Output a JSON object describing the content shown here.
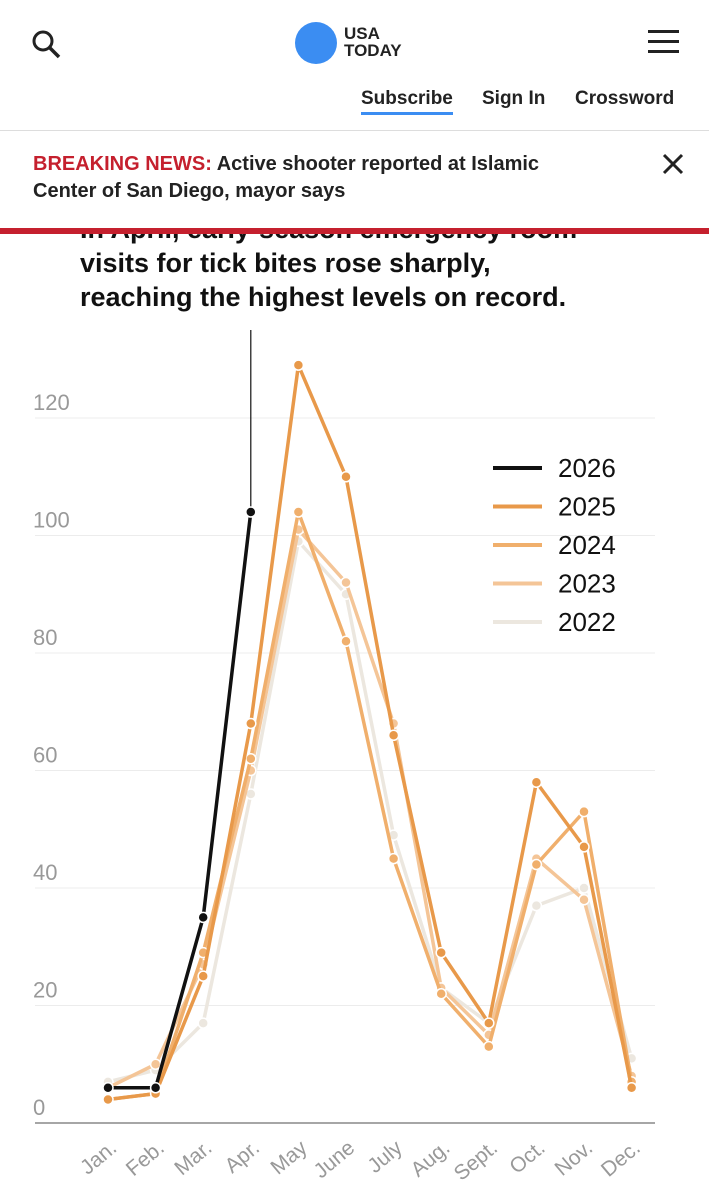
{
  "header": {
    "logo": [
      "USA",
      "TODAY"
    ],
    "nav": [
      "Subscribe",
      "Sign In",
      "Crossword"
    ]
  },
  "breaking": {
    "label": "BREAKING NEWS:",
    "headline": [
      "Active shooter reported at Islamic",
      "Center of San Diego, mayor says"
    ]
  },
  "chart_data": {
    "type": "line",
    "title": [
      "In April, early-season emergency room",
      "visits for tick bites rose sharply,",
      "reaching the highest levels on record."
    ],
    "categories": [
      "Jan.",
      "Feb.",
      "Mar.",
      "Apr.",
      "May",
      "June",
      "July",
      "Aug.",
      "Sept.",
      "Oct.",
      "Nov.",
      "Dec."
    ],
    "series": [
      {
        "name": "2026",
        "color": "#111111",
        "values": [
          6,
          6,
          35,
          104,
          null,
          null,
          null,
          null,
          null,
          null,
          null,
          null
        ]
      },
      {
        "name": "2025",
        "color": "#e8994a",
        "values": [
          4,
          5,
          25,
          68,
          129,
          110,
          66,
          29,
          17,
          58,
          47,
          6
        ]
      },
      {
        "name": "2024",
        "color": "#f0af6c",
        "values": [
          4,
          5,
          29,
          62,
          104,
          82,
          45,
          22,
          13,
          44,
          53,
          7
        ]
      },
      {
        "name": "2023",
        "color": "#f4c597",
        "values": [
          6,
          10,
          27,
          60,
          101,
          92,
          68,
          23,
          15,
          45,
          38,
          8
        ]
      },
      {
        "name": "2022",
        "color": "#ece7df",
        "values": [
          7,
          9,
          17,
          56,
          99,
          90,
          49,
          23,
          17,
          37,
          40,
          11
        ]
      }
    ],
    "ylim": [
      0,
      120
    ],
    "yticks": [
      0,
      20,
      40,
      60,
      80,
      100,
      120
    ],
    "grid": true
  }
}
